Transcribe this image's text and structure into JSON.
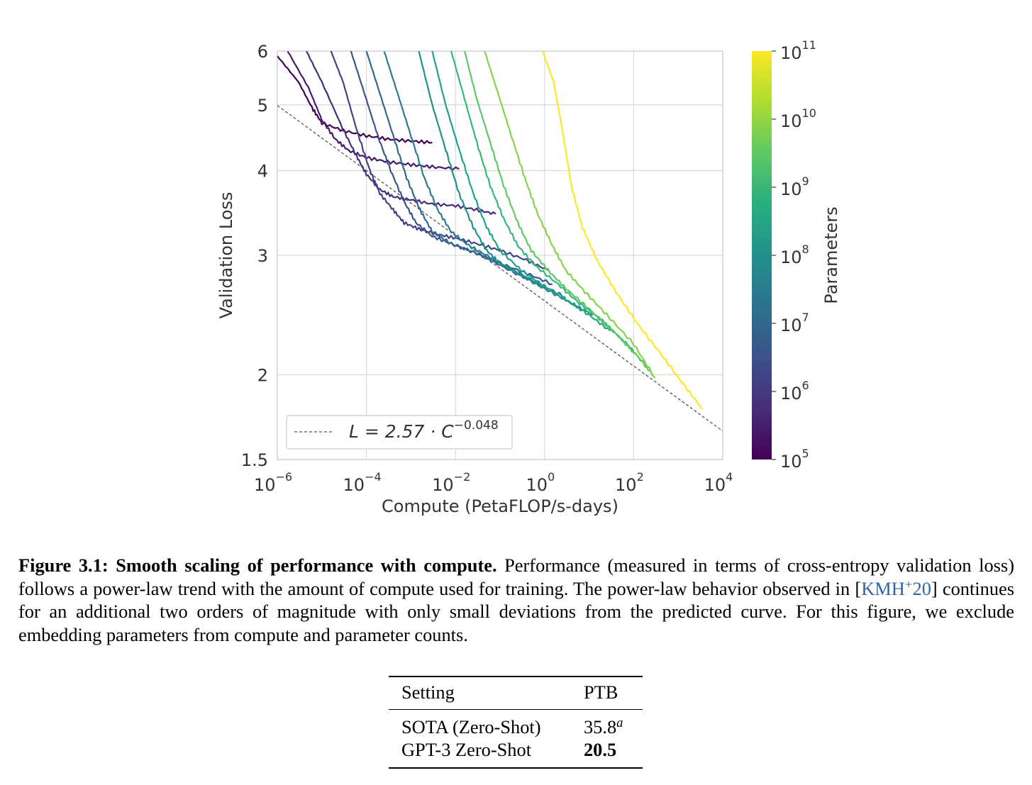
{
  "chart_data": {
    "type": "line",
    "xlabel": "Compute (PetaFLOP/s-days)",
    "ylabel": "Validation Loss",
    "x_scale": "log",
    "y_scale": "log",
    "xlim": [
      1e-06,
      10000
    ],
    "ylim": [
      1.5,
      6
    ],
    "x_ticks": [
      {
        "base": "10",
        "exp": "−6"
      },
      {
        "base": "10",
        "exp": "−4"
      },
      {
        "base": "10",
        "exp": "−2"
      },
      {
        "base": "10",
        "exp": "0"
      },
      {
        "base": "10",
        "exp": "2"
      },
      {
        "base": "10",
        "exp": "4"
      }
    ],
    "y_ticks": [
      "1.5",
      "2",
      "3",
      "4",
      "5",
      "6"
    ],
    "grid": true,
    "legend": {
      "placement": "lower-left",
      "entry": "L = 2.57 · C",
      "exponent": "−0.048"
    },
    "power_law": {
      "coefficient": 2.57,
      "exponent": -0.048
    },
    "colorbar": {
      "label": "Parameters",
      "colormap": "viridis",
      "range": [
        100000,
        100000000000
      ],
      "ticks": [
        {
          "base": "10",
          "exp": "5"
        },
        {
          "base": "10",
          "exp": "6"
        },
        {
          "base": "10",
          "exp": "7"
        },
        {
          "base": "10",
          "exp": "8"
        },
        {
          "base": "10",
          "exp": "9"
        },
        {
          "base": "10",
          "exp": "10"
        },
        {
          "base": "10",
          "exp": "11"
        }
      ]
    },
    "series": [
      {
        "color": "#440154",
        "params": 100000,
        "points": [
          [
            1e-06,
            5.9
          ],
          [
            3e-06,
            5.4
          ],
          [
            6e-06,
            4.95
          ],
          [
            1e-05,
            4.7
          ],
          [
            3e-05,
            4.58
          ],
          [
            0.0001,
            4.5
          ],
          [
            0.0003,
            4.45
          ],
          [
            0.001,
            4.42
          ],
          [
            0.003,
            4.4
          ]
        ]
      },
      {
        "color": "#481a6c",
        "params": 300000,
        "points": [
          [
            1.7e-06,
            6.0
          ],
          [
            5e-06,
            5.3
          ],
          [
            1e-05,
            4.75
          ],
          [
            2e-05,
            4.45
          ],
          [
            4e-05,
            4.28
          ],
          [
            0.0001,
            4.18
          ],
          [
            0.0003,
            4.12
          ],
          [
            0.001,
            4.08
          ],
          [
            0.003,
            4.05
          ],
          [
            0.012,
            4.02
          ]
        ]
      },
      {
        "color": "#472f7d",
        "params": 700000,
        "points": [
          [
            4.5e-06,
            6.0
          ],
          [
            1e-05,
            5.4
          ],
          [
            3e-05,
            4.6
          ],
          [
            6e-05,
            4.2
          ],
          [
            0.0001,
            3.95
          ],
          [
            0.0002,
            3.75
          ],
          [
            0.0004,
            3.66
          ],
          [
            0.001,
            3.62
          ],
          [
            0.003,
            3.57
          ],
          [
            0.01,
            3.55
          ],
          [
            0.03,
            3.5
          ],
          [
            0.08,
            3.45
          ]
        ]
      },
      {
        "color": "#414487",
        "params": 1500000,
        "points": [
          [
            1.6e-05,
            6.0
          ],
          [
            3e-05,
            5.4
          ],
          [
            6e-05,
            4.6
          ],
          [
            0.00012,
            4.0
          ],
          [
            0.0002,
            3.7
          ],
          [
            0.0004,
            3.5
          ],
          [
            0.0007,
            3.35
          ],
          [
            0.0015,
            3.28
          ],
          [
            0.004,
            3.22
          ],
          [
            0.01,
            3.18
          ],
          [
            0.03,
            3.12
          ],
          [
            0.1,
            3.05
          ],
          [
            0.4,
            2.95
          ],
          [
            1.2,
            2.85
          ]
        ]
      },
      {
        "color": "#39568c",
        "params": 3000000,
        "points": [
          [
            4.5e-05,
            6.0
          ],
          [
            9e-05,
            5.2
          ],
          [
            0.00018,
            4.5
          ],
          [
            0.00035,
            4.0
          ],
          [
            0.0007,
            3.6
          ],
          [
            0.0013,
            3.35
          ],
          [
            0.003,
            3.2
          ],
          [
            0.008,
            3.12
          ],
          [
            0.03,
            3.02
          ],
          [
            0.1,
            2.92
          ],
          [
            0.4,
            2.82
          ],
          [
            1.5,
            2.72
          ]
        ]
      },
      {
        "color": "#31688e",
        "params": 8000000,
        "points": [
          [
            0.0001,
            6.0
          ],
          [
            0.0002,
            5.2
          ],
          [
            0.0004,
            4.5
          ],
          [
            0.0008,
            3.9
          ],
          [
            0.0016,
            3.5
          ],
          [
            0.003,
            3.25
          ],
          [
            0.008,
            3.12
          ],
          [
            0.03,
            3.02
          ],
          [
            0.1,
            2.9
          ],
          [
            0.5,
            2.75
          ],
          [
            2,
            2.62
          ]
        ]
      },
      {
        "color": "#287c8e",
        "params": 20000000,
        "points": [
          [
            0.00025,
            6.0
          ],
          [
            0.0005,
            5.2
          ],
          [
            0.001,
            4.5
          ],
          [
            0.002,
            3.9
          ],
          [
            0.004,
            3.5
          ],
          [
            0.008,
            3.25
          ],
          [
            0.02,
            3.1
          ],
          [
            0.06,
            2.98
          ],
          [
            0.2,
            2.85
          ],
          [
            0.8,
            2.72
          ],
          [
            3,
            2.6
          ]
        ]
      },
      {
        "color": "#21918c",
        "params": 50000000,
        "points": [
          [
            0.0015,
            6.0
          ],
          [
            0.003,
            5.0
          ],
          [
            0.006,
            4.3
          ],
          [
            0.012,
            3.7
          ],
          [
            0.025,
            3.3
          ],
          [
            0.05,
            3.05
          ],
          [
            0.1,
            2.92
          ],
          [
            0.3,
            2.8
          ],
          [
            1,
            2.68
          ],
          [
            4,
            2.55
          ],
          [
            12,
            2.45
          ]
        ]
      },
      {
        "color": "#20a386",
        "params": 150000000,
        "points": [
          [
            0.003,
            6.0
          ],
          [
            0.006,
            5.0
          ],
          [
            0.012,
            4.3
          ],
          [
            0.025,
            3.7
          ],
          [
            0.05,
            3.3
          ],
          [
            0.1,
            3.05
          ],
          [
            0.3,
            2.85
          ],
          [
            1,
            2.7
          ],
          [
            3,
            2.58
          ],
          [
            10,
            2.45
          ],
          [
            30,
            2.32
          ]
        ]
      },
      {
        "color": "#35b779",
        "params": 500000000,
        "points": [
          [
            0.008,
            6.0
          ],
          [
            0.016,
            5.1
          ],
          [
            0.03,
            4.4
          ],
          [
            0.06,
            3.8
          ],
          [
            0.12,
            3.4
          ],
          [
            0.25,
            3.1
          ],
          [
            0.6,
            2.9
          ],
          [
            2,
            2.72
          ],
          [
            6,
            2.55
          ],
          [
            20,
            2.4
          ],
          [
            80,
            2.2
          ],
          [
            200,
            2.05
          ]
        ]
      },
      {
        "color": "#5ec962",
        "params": 1500000000,
        "points": [
          [
            0.016,
            6.0
          ],
          [
            0.03,
            5.1
          ],
          [
            0.06,
            4.4
          ],
          [
            0.12,
            3.8
          ],
          [
            0.25,
            3.35
          ],
          [
            0.5,
            3.05
          ],
          [
            1.2,
            2.85
          ],
          [
            3,
            2.68
          ],
          [
            10,
            2.5
          ],
          [
            40,
            2.3
          ],
          [
            150,
            2.1
          ],
          [
            300,
            1.98
          ]
        ]
      },
      {
        "color": "#84d44b",
        "params": 3000000000,
        "points": [
          [
            0.045,
            6.0
          ],
          [
            0.09,
            5.2
          ],
          [
            0.18,
            4.5
          ],
          [
            0.36,
            3.9
          ],
          [
            0.7,
            3.45
          ],
          [
            1.5,
            3.1
          ],
          [
            3,
            2.85
          ],
          [
            8,
            2.65
          ],
          [
            25,
            2.45
          ],
          [
            100,
            2.22
          ],
          [
            300,
            1.98
          ]
        ]
      },
      {
        "color": "#fde725",
        "params": 175000000000,
        "points": [
          [
            0.9,
            6.0
          ],
          [
            1.6,
            5.4
          ],
          [
            2.5,
            4.6
          ],
          [
            4,
            3.8
          ],
          [
            7,
            3.3
          ],
          [
            15,
            2.95
          ],
          [
            40,
            2.65
          ],
          [
            120,
            2.38
          ],
          [
            400,
            2.15
          ],
          [
            1200,
            1.95
          ],
          [
            3500,
            1.78
          ]
        ]
      }
    ]
  },
  "caption": {
    "label": "Figure 3.1:",
    "bold_title": "Smooth scaling of performance with compute.",
    "text_before_cite": "Performance (measured in terms of cross-entropy validation loss) follows a power-law trend with the amount of compute used for training. The power-law behavior observed in [",
    "cite_main": "KMH",
    "cite_sup": "+",
    "cite_year": "20",
    "text_after_cite": "] continues for an additional two orders of magnitude with only small deviations from the predicted curve. For this figure, we exclude embedding parameters from compute and parameter counts."
  },
  "table": {
    "headers": [
      "Setting",
      "PTB"
    ],
    "rows": [
      {
        "setting": "SOTA (Zero-Shot)",
        "value": "35.8",
        "note": "a"
      },
      {
        "setting": "GPT-3 Zero-Shot",
        "value": "20.5"
      }
    ]
  }
}
